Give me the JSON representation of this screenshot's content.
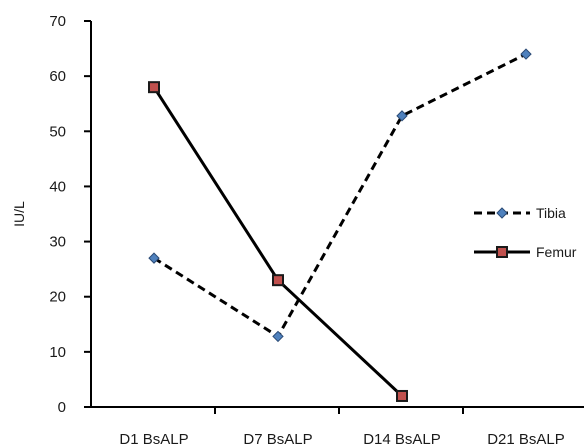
{
  "chart_data": {
    "type": "line",
    "title": "",
    "xlabel": "",
    "ylabel": "IU/L",
    "categories": [
      "D1 BsALP",
      "D7 BsALP",
      "D14 BsALP",
      "D21 BsALP"
    ],
    "ylim": [
      0,
      70
    ],
    "yticks": [
      0,
      10,
      20,
      30,
      40,
      50,
      60,
      70
    ],
    "grid": false,
    "legend_position": "right",
    "series": [
      {
        "name": "Tibia",
        "values": [
          27,
          12.8,
          52.8,
          64
        ],
        "line_style": "dashed",
        "line_color": "#000000",
        "marker": "diamond",
        "marker_color": "#4f81bd"
      },
      {
        "name": "Femur",
        "values": [
          58,
          23,
          2,
          null
        ],
        "line_style": "solid",
        "line_color": "#000000",
        "marker": "square",
        "marker_color": "#c0504d"
      }
    ]
  }
}
